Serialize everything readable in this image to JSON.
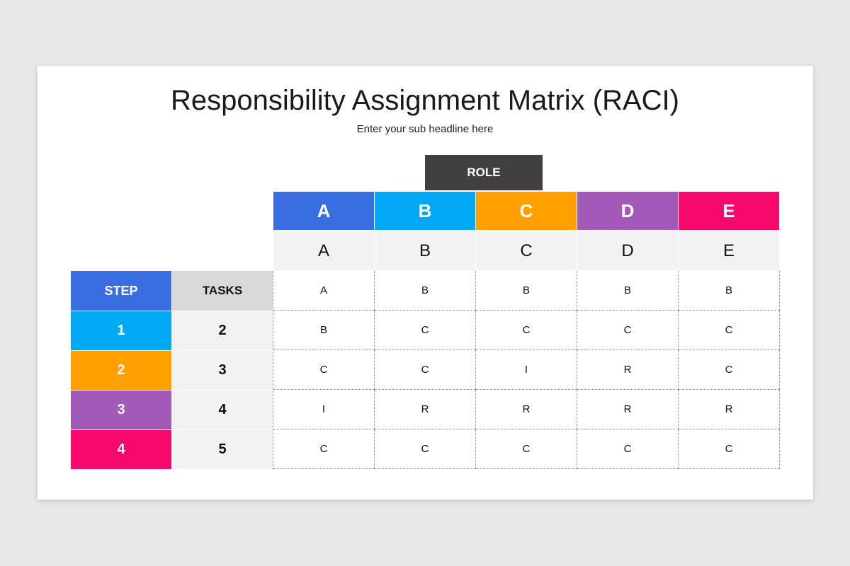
{
  "header": {
    "title": "Responsibility Assignment Matrix (RACI)",
    "subtitle": "Enter your sub headline here"
  },
  "matrix": {
    "role_label": "ROLE",
    "roles": [
      "A",
      "B",
      "C",
      "D",
      "E"
    ],
    "role_subheaders": [
      "A",
      "B",
      "C",
      "D",
      "E"
    ],
    "step_header": "STEP",
    "tasks_header": "TASKS",
    "header_row_cells": [
      "A",
      "B",
      "B",
      "B",
      "B"
    ],
    "rows": [
      {
        "step": "1",
        "task": "2",
        "cells": [
          "B",
          "C",
          "C",
          "C",
          "C"
        ]
      },
      {
        "step": "2",
        "task": "3",
        "cells": [
          "C",
          "C",
          "I",
          "R",
          "C"
        ]
      },
      {
        "step": "3",
        "task": "4",
        "cells": [
          "I",
          "R",
          "R",
          "R",
          "R"
        ]
      },
      {
        "step": "4",
        "task": "5",
        "cells": [
          "C",
          "C",
          "C",
          "C",
          "C"
        ]
      }
    ]
  }
}
